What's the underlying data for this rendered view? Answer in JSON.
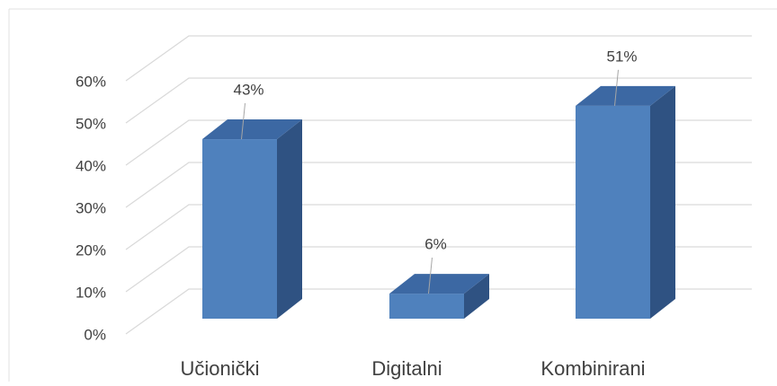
{
  "chart_data": {
    "type": "bar3d",
    "categories": [
      "Učionički",
      "Digitalni",
      "Kombinirani"
    ],
    "values": [
      43,
      6,
      51
    ],
    "value_labels": [
      "43%",
      "6%",
      "51%"
    ],
    "color": "#4f81bd",
    "ylim": [
      0,
      60
    ],
    "yticks": [
      {
        "value": 0,
        "label": "0%"
      },
      {
        "value": 10,
        "label": "10%"
      },
      {
        "value": 20,
        "label": "20%"
      },
      {
        "value": 30,
        "label": "30%"
      },
      {
        "value": 40,
        "label": "40%"
      },
      {
        "value": 50,
        "label": "50%"
      },
      {
        "value": 60,
        "label": "60%"
      }
    ],
    "grid": true
  }
}
